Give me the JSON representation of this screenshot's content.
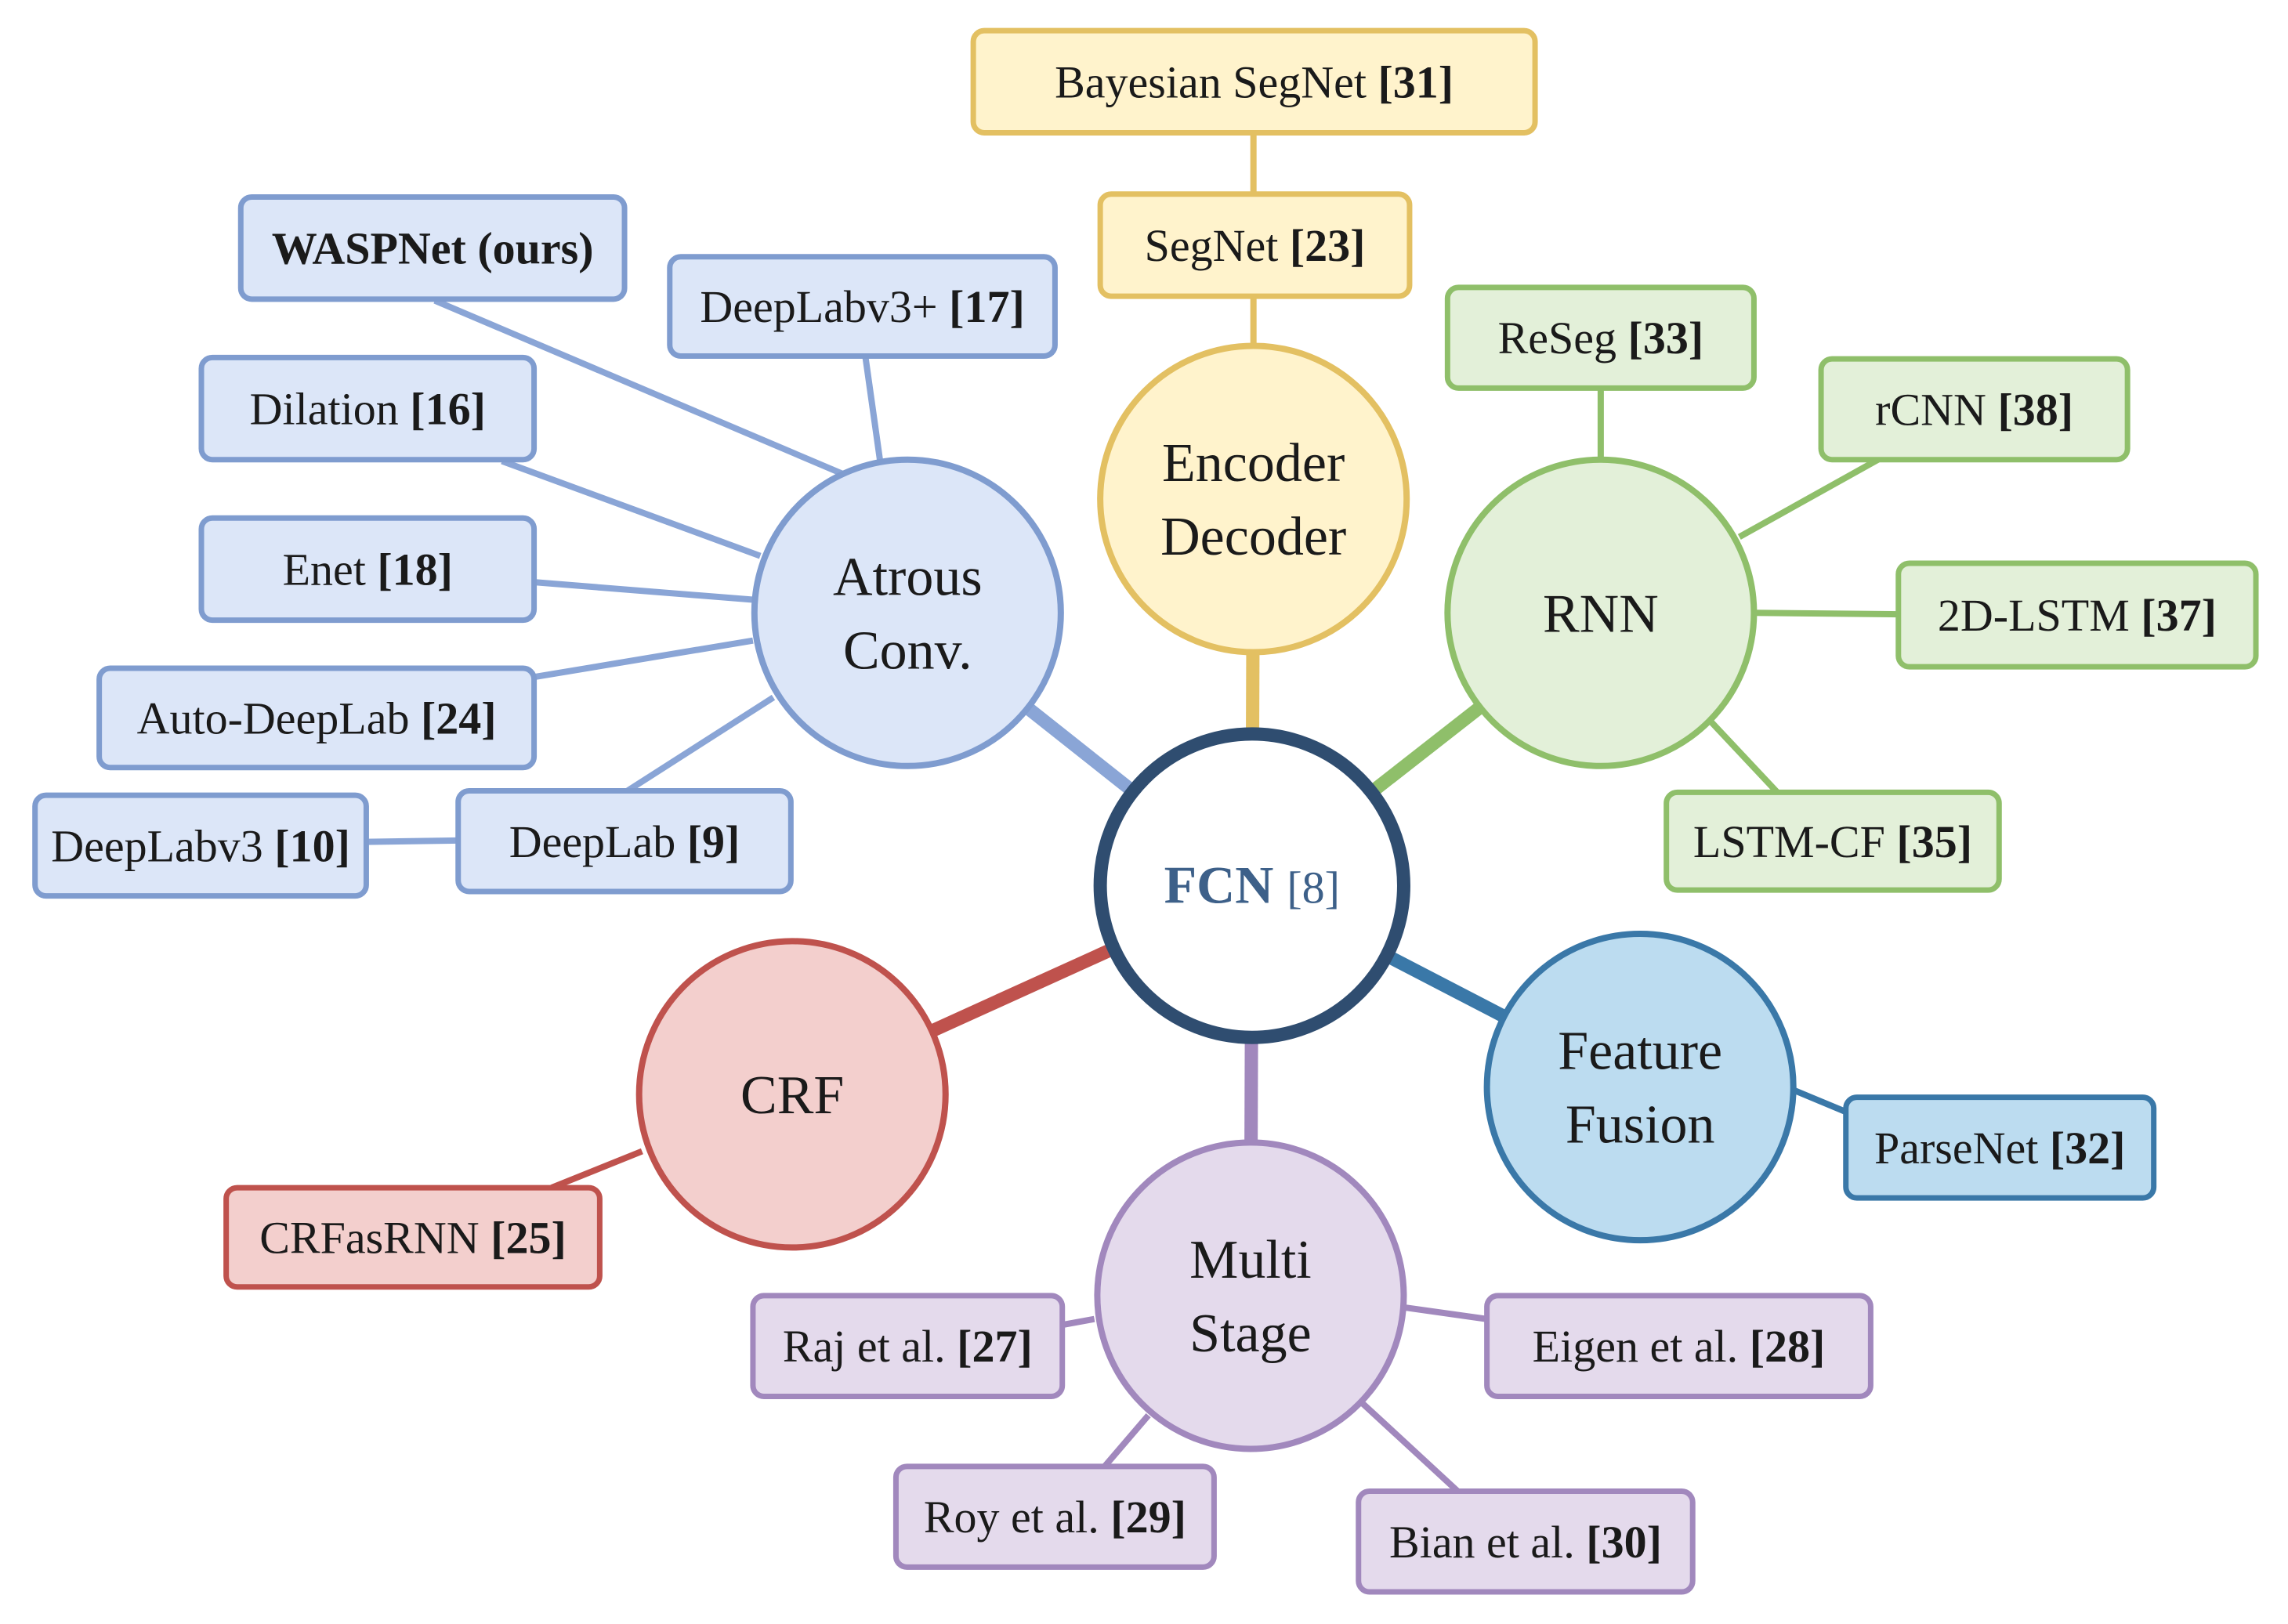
{
  "center": {
    "name": "FCN",
    "ref": "[8]"
  },
  "colors": {
    "center": "#2f4d70",
    "center_text": "#3d6089",
    "atrous": {
      "fill": "#dce6f8",
      "stroke": "#7f9ccf",
      "line": "#8aa5d6"
    },
    "encoder": {
      "fill": "#fff3cc",
      "stroke": "#e3c062",
      "line": "#e3c062"
    },
    "rnn": {
      "fill": "#e3f0d9",
      "stroke": "#8fbf6a",
      "line": "#8fbf6a"
    },
    "fusion": {
      "fill": "#bcdcf0",
      "stroke": "#3a78a8",
      "line": "#3a78a8"
    },
    "multi": {
      "fill": "#e4daec",
      "stroke": "#a188bd",
      "line": "#a188bd"
    },
    "crf": {
      "fill": "#f3cfcd",
      "stroke": "#bf524d",
      "line": "#bf524d"
    }
  },
  "hubs": [
    {
      "id": "atrous",
      "lines": [
        "Atrous",
        "Conv."
      ]
    },
    {
      "id": "encoder",
      "lines": [
        "Encoder",
        "Decoder"
      ]
    },
    {
      "id": "rnn",
      "lines": [
        "RNN"
      ]
    },
    {
      "id": "fusion",
      "lines": [
        "Feature",
        "Fusion"
      ]
    },
    {
      "id": "multi",
      "lines": [
        "Multi",
        "Stage"
      ]
    },
    {
      "id": "crf",
      "lines": [
        "CRF"
      ]
    }
  ],
  "methods": [
    {
      "id": "waspnet",
      "group": "atrous",
      "text": "WASPNet (ours)",
      "ref": "",
      "bold": true
    },
    {
      "id": "dilation",
      "group": "atrous",
      "text": "Dilation",
      "ref": "[16]"
    },
    {
      "id": "enet",
      "group": "atrous",
      "text": "Enet",
      "ref": "[18]"
    },
    {
      "id": "auto-deeplab",
      "group": "atrous",
      "text": "Auto-DeepLab",
      "ref": "[24]"
    },
    {
      "id": "deeplabv3plus",
      "group": "atrous",
      "text": "DeepLabv3+",
      "ref": "[17]"
    },
    {
      "id": "deeplab",
      "group": "atrous",
      "text": "DeepLab",
      "ref": "[9]"
    },
    {
      "id": "deeplabv3",
      "group": "atrous",
      "text": "DeepLabv3",
      "ref": "[10]"
    },
    {
      "id": "bayesian-segnet",
      "group": "encoder",
      "text": "Bayesian SegNet",
      "ref": "[31]"
    },
    {
      "id": "segnet",
      "group": "encoder",
      "text": "SegNet",
      "ref": "[23]"
    },
    {
      "id": "reseg",
      "group": "rnn",
      "text": "ReSeg",
      "ref": "[33]"
    },
    {
      "id": "rcnn",
      "group": "rnn",
      "text": "rCNN",
      "ref": "[38]"
    },
    {
      "id": "2d-lstm",
      "group": "rnn",
      "text": "2D-LSTM",
      "ref": "[37]"
    },
    {
      "id": "lstm-cf",
      "group": "rnn",
      "text": "LSTM-CF",
      "ref": "[35]"
    },
    {
      "id": "parsenet",
      "group": "fusion",
      "text": "ParseNet",
      "ref": "[32]"
    },
    {
      "id": "eigen",
      "group": "multi",
      "text": "Eigen et al.",
      "ref": "[28]"
    },
    {
      "id": "bian",
      "group": "multi",
      "text": "Bian et al.",
      "ref": "[30]"
    },
    {
      "id": "raj",
      "group": "multi",
      "text": "Raj et al.",
      "ref": "[27]"
    },
    {
      "id": "roy",
      "group": "multi",
      "text": "Roy et al.",
      "ref": "[29]"
    },
    {
      "id": "crfasrnn",
      "group": "crf",
      "text": "CRFasRNN",
      "ref": "[25]"
    }
  ]
}
